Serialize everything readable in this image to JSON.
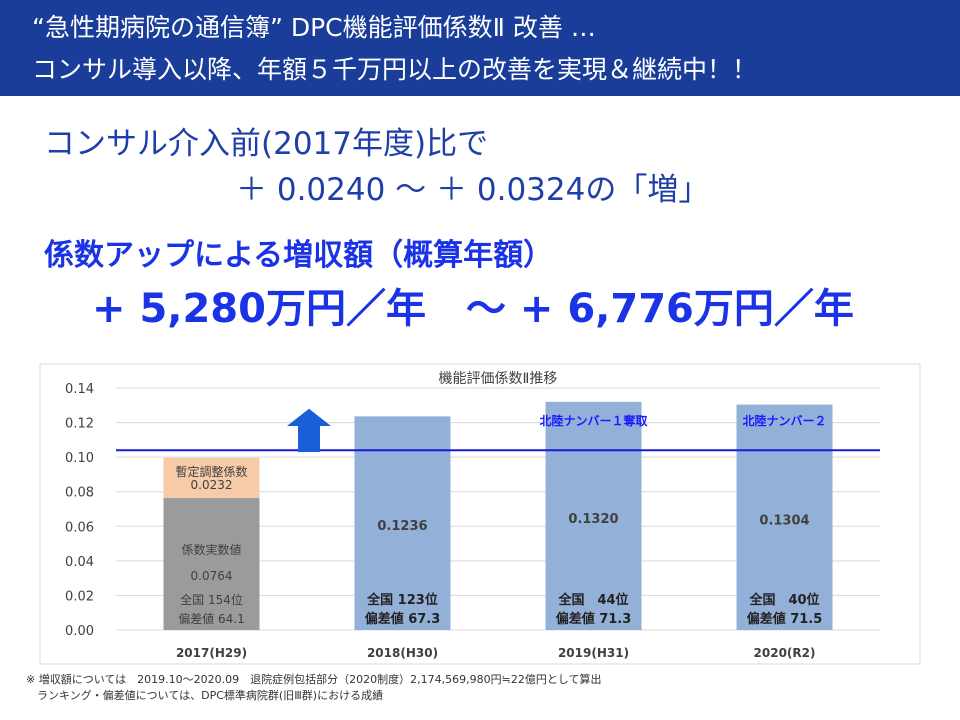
{
  "header": {
    "line1": "“急性期病院の通信簿” DPC機能評価係数Ⅱ 改善 …",
    "line2": "コンサル導入以降、年額５千万円以上の改善を実現＆継続中！！"
  },
  "comparison": {
    "line1": "コンサル介入前(2017年度)比で",
    "line2": "＋ 0.0240 ～ ＋ 0.0324の「増」"
  },
  "increase": {
    "title": "係数アップによる増収額（概算年額）",
    "value": "+ 5,280万円／年　～ + 6,776万円／年"
  },
  "colors": {
    "header_bg": "#1b3d9a",
    "bar_blue": "#93b0d8",
    "bar_gray": "#9b9b9b",
    "bar_peach": "#f8cba8",
    "line_blue": "#1a1ad8",
    "arrow_blue": "#1a5fd8",
    "label_blue": "#1a1aff"
  },
  "chart_data": {
    "type": "bar",
    "title": "機能評価係数Ⅱ推移",
    "categories": [
      "2017(H29)",
      "2018(H30)",
      "2019(H31)",
      "2020(R2)"
    ],
    "ylim": [
      0,
      0.14
    ],
    "yticks": [
      "0.00",
      "0.02",
      "0.04",
      "0.06",
      "0.08",
      "0.10",
      "0.12",
      "0.14"
    ],
    "grid": true,
    "reference_line": 0.104,
    "series": [
      {
        "name": "係数実数値",
        "values": [
          0.0764,
          0.1236,
          0.132,
          0.1304
        ]
      },
      {
        "name": "暫定調整係数",
        "values": [
          0.0232,
          0,
          0,
          0
        ]
      }
    ],
    "value_labels": [
      "0.0764",
      "0.1236",
      "0.1320",
      "0.1304"
    ],
    "stack_labels": {
      "base_name": "係数実数値",
      "top_name": "暫定調整係数",
      "top_value": "0.0232"
    },
    "rank_line1": [
      "全国 154位",
      "全国 123位",
      "全国　44位",
      "全国　40位"
    ],
    "rank_line2": [
      "偏差値 64.1",
      "偏差値 67.3",
      "偏差値 71.3",
      "偏差値 71.5"
    ],
    "annotations": [
      "",
      "",
      "北陸ナンバー１奪取",
      "北陸ナンバー２"
    ],
    "arrow": "up"
  },
  "footnote": {
    "line1": "※ 増収額については　2019.10～2020.09　退院症例包括部分（2020制度）2,174,569,980円≒22億円として算出",
    "line2": "　ランキング・偏差値については、DPC標準病院群(旧Ⅲ群)における成績"
  }
}
